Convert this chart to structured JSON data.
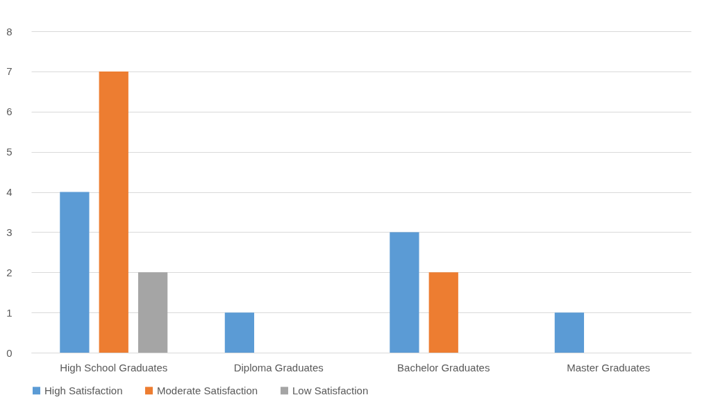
{
  "chart_data": {
    "type": "bar",
    "categories": [
      "High School Graduates",
      "Diploma Graduates",
      "Bachelor Graduates",
      "Master Graduates"
    ],
    "series": [
      {
        "name": "High Satisfaction",
        "color": "#5b9bd5",
        "values": [
          4,
          1,
          3,
          1
        ]
      },
      {
        "name": "Moderate Satisfaction",
        "color": "#ed7d31",
        "values": [
          7,
          0,
          2,
          0
        ]
      },
      {
        "name": "Low Satisfaction",
        "color": "#a5a5a5",
        "values": [
          2,
          0,
          0,
          0
        ]
      }
    ],
    "ylim": [
      0,
      8
    ],
    "yticks": [
      0,
      1,
      2,
      3,
      4,
      5,
      6,
      7,
      8
    ],
    "grid": "y",
    "legend": "bottom"
  }
}
